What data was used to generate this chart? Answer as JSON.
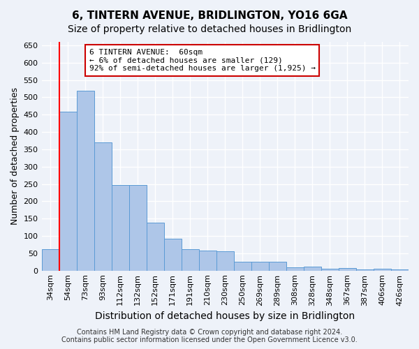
{
  "title": "6, TINTERN AVENUE, BRIDLINGTON, YO16 6GA",
  "subtitle": "Size of property relative to detached houses in Bridlington",
  "xlabel": "Distribution of detached houses by size in Bridlington",
  "ylabel": "Number of detached properties",
  "categories": [
    "34sqm",
    "54sqm",
    "73sqm",
    "93sqm",
    "112sqm",
    "132sqm",
    "152sqm",
    "171sqm",
    "191sqm",
    "210sqm",
    "230sqm",
    "250sqm",
    "269sqm",
    "289sqm",
    "308sqm",
    "328sqm",
    "348sqm",
    "367sqm",
    "387sqm",
    "406sqm",
    "426sqm"
  ],
  "values": [
    62,
    458,
    520,
    370,
    248,
    248,
    138,
    92,
    62,
    58,
    55,
    25,
    25,
    26,
    10,
    12,
    5,
    8,
    4,
    6,
    4
  ],
  "bar_color": "#aec6e8",
  "bar_edge_color": "#5b9bd5",
  "red_line_index": 1,
  "annotation_line1": "6 TINTERN AVENUE:  60sqm",
  "annotation_line2": "← 6% of detached houses are smaller (129)",
  "annotation_line3": "92% of semi-detached houses are larger (1,925) →",
  "annotation_box_color": "#ffffff",
  "annotation_box_edge": "#cc0000",
  "ylim": [
    0,
    660
  ],
  "yticks": [
    0,
    50,
    100,
    150,
    200,
    250,
    300,
    350,
    400,
    450,
    500,
    550,
    600,
    650
  ],
  "footer1": "Contains HM Land Registry data © Crown copyright and database right 2024.",
  "footer2": "Contains public sector information licensed under the Open Government Licence v3.0.",
  "background_color": "#eef2f9",
  "grid_color": "#ffffff",
  "title_fontsize": 11,
  "subtitle_fontsize": 10,
  "axis_label_fontsize": 9,
  "tick_fontsize": 8,
  "footer_fontsize": 7
}
